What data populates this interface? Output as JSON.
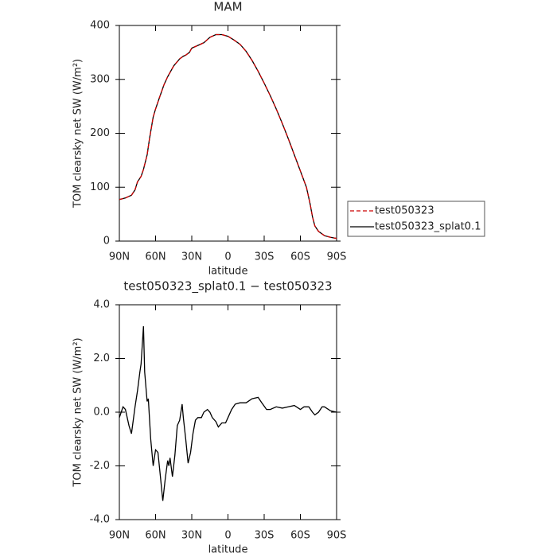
{
  "chart_data": [
    {
      "type": "line",
      "title": "MAM",
      "y_label": "TOM clearsky net SW (W/m²)",
      "x_label": "latitude",
      "xlim": [
        90,
        -90
      ],
      "xticks": [
        {
          "value": 90,
          "label": "90N"
        },
        {
          "value": 60,
          "label": "60N"
        },
        {
          "value": 30,
          "label": "30N"
        },
        0,
        {
          "value": -30,
          "label": "30S"
        },
        {
          "value": -60,
          "label": "60S"
        },
        {
          "value": -90,
          "label": "90S"
        }
      ],
      "ylim": [
        0,
        400
      ],
      "yticks": [
        0,
        100,
        200,
        300,
        400
      ],
      "x": [
        90,
        85,
        80,
        77,
        75,
        72,
        70,
        67,
        65,
        62,
        60,
        57,
        53,
        50,
        45,
        40,
        37,
        35,
        32,
        30,
        25,
        20,
        15,
        10,
        5,
        0,
        -5,
        -10,
        -15,
        -20,
        -25,
        -30,
        -35,
        -40,
        -45,
        -50,
        -55,
        -60,
        -65,
        -68,
        -70,
        -72,
        -75,
        -80,
        -85,
        -90
      ],
      "series": [
        {
          "name": "test050323_splat0.1",
          "color": "#000000",
          "dashed": false,
          "values": [
            77,
            80,
            85,
            95,
            110,
            120,
            133,
            160,
            190,
            230,
            245,
            265,
            290,
            305,
            325,
            338,
            343,
            345,
            350,
            358,
            363,
            368,
            378,
            383,
            383,
            380,
            373,
            365,
            352,
            335,
            315,
            293,
            270,
            245,
            218,
            190,
            160,
            130,
            100,
            70,
            45,
            28,
            18,
            10,
            7,
            5
          ]
        },
        {
          "name": "test050323",
          "color": "#cc0000",
          "dashed": true,
          "values": [
            77,
            80,
            85,
            95,
            110,
            120,
            133,
            160,
            190,
            230,
            245,
            265,
            290,
            305,
            325,
            338,
            343,
            345,
            350,
            358,
            363,
            368,
            378,
            383,
            383,
            380,
            373,
            365,
            352,
            335,
            315,
            293,
            270,
            245,
            218,
            190,
            160,
            130,
            100,
            70,
            45,
            28,
            18,
            10,
            7,
            5
          ]
        }
      ],
      "legend_order": [
        "test050323",
        "test050323_splat0.1"
      ]
    },
    {
      "type": "line",
      "title": "test050323_splat0.1 − test050323",
      "y_label": "TOM clearsky net SW (W/m²)",
      "x_label": "latitude",
      "xlim": [
        90,
        -90
      ],
      "xticks": [
        {
          "value": 90,
          "label": "90N"
        },
        {
          "value": 60,
          "label": "60N"
        },
        {
          "value": 30,
          "label": "30N"
        },
        0,
        {
          "value": -30,
          "label": "30S"
        },
        {
          "value": -60,
          "label": "60S"
        },
        {
          "value": -90,
          "label": "90S"
        }
      ],
      "ylim": [
        -4,
        4
      ],
      "yticks": [
        {
          "value": -4,
          "label": "-4.0"
        },
        {
          "value": -2,
          "label": "-2.0"
        },
        {
          "value": 0,
          "label": "0.0"
        },
        {
          "value": 2,
          "label": "2.0"
        },
        {
          "value": 4,
          "label": "4.0"
        }
      ],
      "x": [
        90,
        87,
        85,
        82,
        80,
        77,
        75,
        73,
        72,
        70,
        69,
        67,
        66,
        64,
        62,
        60,
        58,
        56,
        54,
        52,
        50,
        49,
        48,
        46,
        44,
        42,
        40,
        38,
        37,
        35,
        33,
        31,
        29,
        27,
        25,
        22,
        20,
        17,
        15,
        13,
        10,
        8,
        5,
        2,
        0,
        -3,
        -6,
        -10,
        -15,
        -20,
        -25,
        -28,
        -32,
        -35,
        -40,
        -45,
        -50,
        -55,
        -60,
        -63,
        -67,
        -70,
        -72,
        -75,
        -78,
        -80,
        -85,
        -90
      ],
      "series": [
        {
          "color": "#000000",
          "dashed": false,
          "values": [
            -0.2,
            0.2,
            0.1,
            -0.5,
            -0.8,
            0.2,
            0.8,
            1.5,
            1.8,
            3.2,
            1.5,
            0.4,
            0.5,
            -1.0,
            -2.0,
            -1.4,
            -1.5,
            -2.4,
            -3.3,
            -2.5,
            -1.8,
            -2.0,
            -1.7,
            -2.4,
            -1.6,
            -0.5,
            -0.3,
            0.3,
            -0.2,
            -1.0,
            -1.9,
            -1.5,
            -0.8,
            -0.3,
            -0.2,
            -0.2,
            0.0,
            0.1,
            0.0,
            -0.2,
            -0.35,
            -0.55,
            -0.4,
            -0.4,
            -0.2,
            0.1,
            0.3,
            0.35,
            0.35,
            0.5,
            0.55,
            0.35,
            0.1,
            0.1,
            0.2,
            0.15,
            0.2,
            0.25,
            0.1,
            0.2,
            0.2,
            0.0,
            -0.1,
            0.0,
            0.2,
            0.2,
            0.05,
            0.0
          ]
        }
      ]
    }
  ]
}
